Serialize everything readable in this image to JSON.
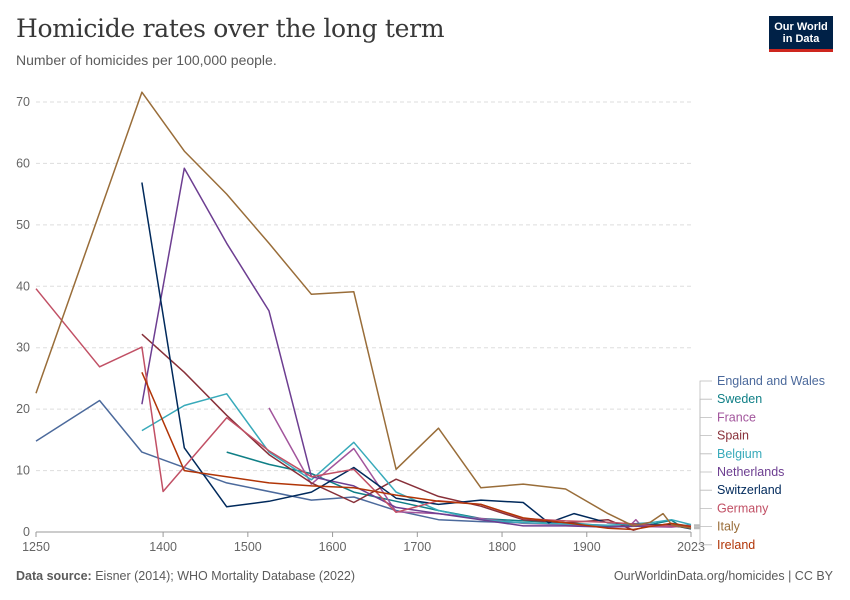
{
  "title": "Homicide rates over the long term",
  "subtitle": "Number of homicides per 100,000 people.",
  "logo": {
    "line1": "Our World",
    "line2": "in Data"
  },
  "footer": {
    "source_label": "Data source:",
    "source_text": "Eisner (2014); WHO Mortality Database (2022)",
    "link": "OurWorldinData.org/homicides | CC BY"
  },
  "chart_data": {
    "type": "line",
    "title": "Homicide rates over the long term",
    "subtitle": "Number of homicides per 100,000 people.",
    "xlim": [
      1250,
      2023
    ],
    "ylim": [
      0,
      70
    ],
    "x_ticks": [
      1250,
      1400,
      1500,
      1600,
      1700,
      1800,
      1900,
      2023
    ],
    "y_ticks": [
      0,
      10,
      20,
      30,
      40,
      50,
      60,
      70
    ],
    "grid": "horizontal dashed",
    "legend": "right, end-of-line labels",
    "series": [
      {
        "name": "England and Wales",
        "color": "#4c6a9c",
        "points": [
          [
            1250,
            14.8
          ],
          [
            1325,
            21.4
          ],
          [
            1375,
            13
          ],
          [
            1475,
            8
          ],
          [
            1575,
            5.2
          ],
          [
            1625,
            5.7
          ],
          [
            1675,
            3.5
          ],
          [
            1725,
            2
          ],
          [
            1775,
            1.7
          ],
          [
            1825,
            1.5
          ],
          [
            1875,
            1.2
          ],
          [
            1925,
            1
          ],
          [
            1975,
            1
          ],
          [
            2000,
            1.3
          ],
          [
            2023,
            1
          ]
        ]
      },
      {
        "name": "Sweden",
        "color": "#0f7f86",
        "points": [
          [
            1475,
            13
          ],
          [
            1525,
            11
          ],
          [
            1575,
            9.5
          ],
          [
            1625,
            6.5
          ],
          [
            1675,
            5
          ],
          [
            1725,
            3.5
          ],
          [
            1775,
            2.2
          ],
          [
            1825,
            1.8
          ],
          [
            1875,
            1.5
          ],
          [
            1925,
            1
          ],
          [
            1975,
            1.2
          ],
          [
            2000,
            1.9
          ],
          [
            2010,
            1
          ],
          [
            2023,
            1.1
          ]
        ]
      },
      {
        "name": "France",
        "color": "#a2559c",
        "points": [
          [
            1525,
            20.2
          ],
          [
            1575,
            7.8
          ],
          [
            1625,
            13.6
          ],
          [
            1675,
            3.3
          ],
          [
            1725,
            3
          ],
          [
            1775,
            2.2
          ],
          [
            1825,
            1.4
          ],
          [
            1875,
            1.2
          ],
          [
            1925,
            1.1
          ],
          [
            1950,
            0.9
          ],
          [
            1958,
            2
          ],
          [
            1965,
            0.9
          ],
          [
            2000,
            0.8
          ],
          [
            2023,
            1.1
          ]
        ]
      },
      {
        "name": "Spain",
        "color": "#883039",
        "points": [
          [
            1375,
            32.2
          ],
          [
            1425,
            26
          ],
          [
            1475,
            19
          ],
          [
            1525,
            12.6
          ],
          [
            1575,
            8
          ],
          [
            1625,
            4.8
          ],
          [
            1675,
            8.6
          ],
          [
            1725,
            5.8
          ],
          [
            1775,
            4.2
          ],
          [
            1825,
            2
          ],
          [
            1875,
            1.5
          ],
          [
            1925,
            2
          ],
          [
            1955,
            0.3
          ],
          [
            1975,
            1.1
          ],
          [
            2000,
            1
          ],
          [
            2023,
            0.7
          ]
        ]
      },
      {
        "name": "Belgium",
        "color": "#38aaba",
        "points": [
          [
            1375,
            16.5
          ],
          [
            1425,
            20.6
          ],
          [
            1475,
            22.5
          ],
          [
            1525,
            13
          ],
          [
            1575,
            8.5
          ],
          [
            1625,
            14.6
          ],
          [
            1675,
            6.5
          ],
          [
            1725,
            3.5
          ],
          [
            1775,
            2
          ],
          [
            1825,
            1.5
          ],
          [
            1875,
            1.3
          ],
          [
            1925,
            1.1
          ],
          [
            1975,
            1.5
          ],
          [
            2000,
            2
          ],
          [
            2023,
            1.2
          ]
        ]
      },
      {
        "name": "Netherlands",
        "color": "#6d3e91",
        "points": [
          [
            1375,
            20.8
          ],
          [
            1425,
            59.2
          ],
          [
            1475,
            47
          ],
          [
            1525,
            36
          ],
          [
            1575,
            9
          ],
          [
            1625,
            7.5
          ],
          [
            1675,
            4
          ],
          [
            1725,
            3
          ],
          [
            1775,
            2
          ],
          [
            1825,
            1
          ],
          [
            1875,
            1
          ],
          [
            1925,
            0.8
          ],
          [
            1975,
            1
          ],
          [
            2000,
            1.3
          ],
          [
            2023,
            0.6
          ]
        ]
      },
      {
        "name": "Switzerland",
        "color": "#00295b",
        "points": [
          [
            1375,
            56.9
          ],
          [
            1425,
            13.7
          ],
          [
            1475,
            4.1
          ],
          [
            1525,
            5
          ],
          [
            1575,
            6.5
          ],
          [
            1625,
            10.5
          ],
          [
            1675,
            5.5
          ],
          [
            1725,
            4.5
          ],
          [
            1775,
            5.2
          ],
          [
            1825,
            4.8
          ],
          [
            1855,
            1.5
          ],
          [
            1885,
            3
          ],
          [
            1925,
            1.5
          ],
          [
            1975,
            1.2
          ],
          [
            2000,
            1.1
          ],
          [
            2023,
            0.5
          ]
        ]
      },
      {
        "name": "Germany",
        "color": "#c15065",
        "points": [
          [
            1250,
            39.6
          ],
          [
            1325,
            26.9
          ],
          [
            1375,
            30.1
          ],
          [
            1400,
            6.6
          ],
          [
            1475,
            18.6
          ],
          [
            1525,
            13.2
          ],
          [
            1575,
            9
          ],
          [
            1625,
            10.2
          ],
          [
            1675,
            3.2
          ],
          [
            1725,
            5.1
          ],
          [
            1775,
            4.5
          ],
          [
            1825,
            2.2
          ],
          [
            1875,
            1.8
          ],
          [
            1925,
            1.6
          ],
          [
            1975,
            1.1
          ],
          [
            2000,
            1
          ],
          [
            2023,
            0.8
          ]
        ]
      },
      {
        "name": "Italy",
        "color": "#996d39",
        "points": [
          [
            1250,
            22.6
          ],
          [
            1325,
            52
          ],
          [
            1375,
            71.6
          ],
          [
            1425,
            62
          ],
          [
            1475,
            55
          ],
          [
            1525,
            47
          ],
          [
            1575,
            38.7
          ],
          [
            1625,
            39.1
          ],
          [
            1675,
            10.2
          ],
          [
            1725,
            16.9
          ],
          [
            1775,
            7.2
          ],
          [
            1825,
            7.8
          ],
          [
            1875,
            7
          ],
          [
            1925,
            3
          ],
          [
            1955,
            1
          ],
          [
            1975,
            1.6
          ],
          [
            1990,
            3
          ],
          [
            2000,
            1.2
          ],
          [
            2010,
            0.9
          ],
          [
            2023,
            0.6
          ]
        ]
      },
      {
        "name": "Ireland",
        "color": "#b13507",
        "points": [
          [
            1375,
            26
          ],
          [
            1425,
            10
          ],
          [
            1475,
            9
          ],
          [
            1525,
            8
          ],
          [
            1575,
            7.5
          ],
          [
            1625,
            7.2
          ],
          [
            1675,
            6
          ],
          [
            1725,
            5
          ],
          [
            1775,
            4.5
          ],
          [
            1825,
            2.3
          ],
          [
            1875,
            1.5
          ],
          [
            1925,
            0.6
          ],
          [
            1955,
            0.4
          ],
          [
            1975,
            0.9
          ],
          [
            2000,
            1.4
          ],
          [
            2023,
            0.9
          ]
        ]
      }
    ]
  }
}
